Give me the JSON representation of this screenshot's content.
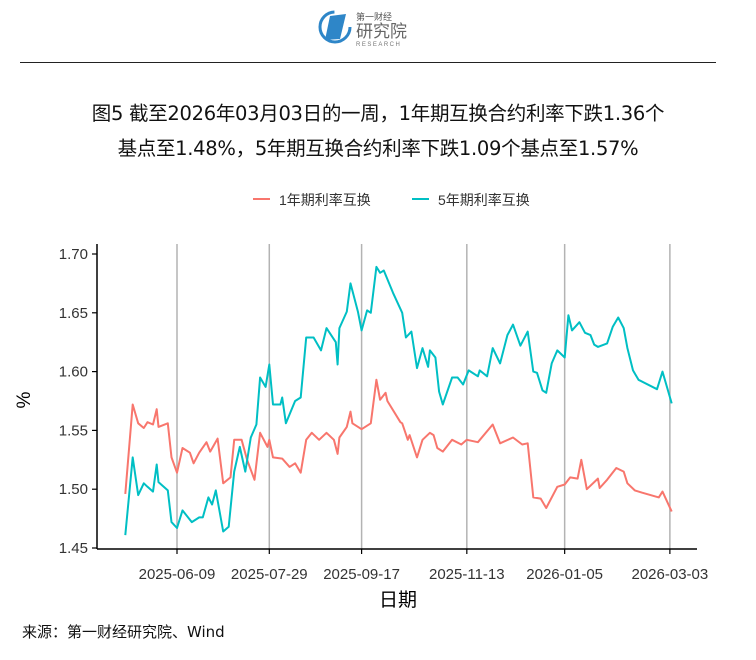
{
  "header": {
    "logo_text_top": "第一财经",
    "logo_text_main": "研究院",
    "logo_text_sub": "RESEARCH"
  },
  "title": {
    "line1": "图5  截至2026年03月03日的一周，1年期互换合约利率下跌1.36个",
    "line2": "基点至1.48%，5年期互换合约利率下跌1.09个基点至1.57%"
  },
  "source": "来源：第一财经研究院、Wind",
  "chart_data": {
    "type": "line",
    "title": "",
    "xlabel": "日期",
    "ylabel": "%",
    "x_unit": "days since 2025-06-09",
    "xlim": [
      -29,
      274
    ],
    "ylim": [
      1.45,
      1.7
    ],
    "yticks": [
      1.45,
      1.5,
      1.55,
      1.6,
      1.65,
      1.7
    ],
    "ytick_labels": [
      "1.45",
      "1.50",
      "1.55",
      "1.60",
      "1.65",
      "1.70"
    ],
    "xticks": [
      0,
      50,
      100,
      157,
      210,
      267
    ],
    "xtick_labels": [
      "2025-06-09",
      "2025-07-29",
      "2025-09-17",
      "2025-11-13",
      "2026-01-05",
      "2026-03-03"
    ],
    "grid": "vertical major",
    "legend": "top",
    "series": [
      {
        "name": "1年期利率互换",
        "color": "#F8766D",
        "points": [
          [
            -28,
            1.496
          ],
          [
            -24,
            1.572
          ],
          [
            -21,
            1.556
          ],
          [
            -18,
            1.552
          ],
          [
            -16,
            1.557
          ],
          [
            -13,
            1.555
          ],
          [
            -11,
            1.568
          ],
          [
            -10,
            1.553
          ],
          [
            -5,
            1.556
          ],
          [
            -3,
            1.527
          ],
          [
            0,
            1.514
          ],
          [
            3,
            1.535
          ],
          [
            7,
            1.531
          ],
          [
            9,
            1.522
          ],
          [
            12,
            1.531
          ],
          [
            16,
            1.54
          ],
          [
            18,
            1.532
          ],
          [
            22,
            1.543
          ],
          [
            25,
            1.505
          ],
          [
            29,
            1.51
          ],
          [
            31,
            1.542
          ],
          [
            35,
            1.542
          ],
          [
            38,
            1.525
          ],
          [
            42,
            1.508
          ],
          [
            45,
            1.548
          ],
          [
            49,
            1.536
          ],
          [
            50,
            1.542
          ],
          [
            52,
            1.527
          ],
          [
            57,
            1.526
          ],
          [
            61,
            1.519
          ],
          [
            64,
            1.522
          ],
          [
            67,
            1.514
          ],
          [
            70,
            1.542
          ],
          [
            73,
            1.548
          ],
          [
            77,
            1.542
          ],
          [
            81,
            1.548
          ],
          [
            85,
            1.542
          ],
          [
            87,
            1.53
          ],
          [
            88,
            1.544
          ],
          [
            92,
            1.553
          ],
          [
            94,
            1.566
          ],
          [
            95,
            1.556
          ],
          [
            100,
            1.551
          ],
          [
            105,
            1.556
          ],
          [
            108,
            1.593
          ],
          [
            110,
            1.576
          ],
          [
            113,
            1.582
          ],
          [
            114,
            1.575
          ],
          [
            121,
            1.557
          ],
          [
            122,
            1.556
          ],
          [
            125,
            1.542
          ],
          [
            126,
            1.546
          ],
          [
            130,
            1.527
          ],
          [
            133,
            1.542
          ],
          [
            137,
            1.548
          ],
          [
            139,
            1.546
          ],
          [
            141,
            1.535
          ],
          [
            144,
            1.532
          ],
          [
            149,
            1.542
          ],
          [
            154,
            1.538
          ],
          [
            157,
            1.542
          ],
          [
            163,
            1.54
          ],
          [
            171,
            1.555
          ],
          [
            175,
            1.539
          ],
          [
            182,
            1.544
          ],
          [
            187,
            1.538
          ],
          [
            190,
            1.539
          ],
          [
            193,
            1.493
          ],
          [
            197,
            1.492
          ],
          [
            200,
            1.484
          ],
          [
            206,
            1.502
          ],
          [
            210,
            1.504
          ],
          [
            213,
            1.51
          ],
          [
            217,
            1.509
          ],
          [
            219,
            1.525
          ],
          [
            222,
            1.5
          ],
          [
            228,
            1.509
          ],
          [
            229,
            1.501
          ],
          [
            233,
            1.508
          ],
          [
            238,
            1.518
          ],
          [
            242,
            1.515
          ],
          [
            244,
            1.505
          ],
          [
            248,
            1.499
          ],
          [
            252,
            1.497
          ],
          [
            261,
            1.493
          ],
          [
            263,
            1.498
          ],
          [
            268,
            1.481
          ]
        ]
      },
      {
        "name": "5年期利率互换",
        "color": "#00BFC4",
        "points": [
          [
            -28,
            1.461
          ],
          [
            -24,
            1.527
          ],
          [
            -21,
            1.495
          ],
          [
            -18,
            1.505
          ],
          [
            -16,
            1.502
          ],
          [
            -13,
            1.498
          ],
          [
            -11,
            1.521
          ],
          [
            -10,
            1.506
          ],
          [
            -5,
            1.499
          ],
          [
            -3,
            1.472
          ],
          [
            0,
            1.467
          ],
          [
            3,
            1.482
          ],
          [
            8,
            1.472
          ],
          [
            12,
            1.476
          ],
          [
            14,
            1.476
          ],
          [
            17,
            1.493
          ],
          [
            19,
            1.487
          ],
          [
            21,
            1.499
          ],
          [
            25,
            1.464
          ],
          [
            28,
            1.468
          ],
          [
            31,
            1.515
          ],
          [
            34,
            1.536
          ],
          [
            37,
            1.515
          ],
          [
            40,
            1.544
          ],
          [
            43,
            1.555
          ],
          [
            45,
            1.595
          ],
          [
            48,
            1.587
          ],
          [
            50,
            1.606
          ],
          [
            52,
            1.572
          ],
          [
            56,
            1.572
          ],
          [
            57,
            1.578
          ],
          [
            59,
            1.556
          ],
          [
            64,
            1.575
          ],
          [
            67,
            1.578
          ],
          [
            70,
            1.629
          ],
          [
            74,
            1.629
          ],
          [
            78,
            1.618
          ],
          [
            81,
            1.637
          ],
          [
            86,
            1.625
          ],
          [
            87,
            1.606
          ],
          [
            88,
            1.637
          ],
          [
            92,
            1.651
          ],
          [
            94,
            1.675
          ],
          [
            98,
            1.651
          ],
          [
            100,
            1.635
          ],
          [
            103,
            1.652
          ],
          [
            105,
            1.65
          ],
          [
            108,
            1.689
          ],
          [
            110,
            1.684
          ],
          [
            112,
            1.686
          ],
          [
            117,
            1.667
          ],
          [
            122,
            1.65
          ],
          [
            124,
            1.629
          ],
          [
            127,
            1.634
          ],
          [
            130,
            1.603
          ],
          [
            133,
            1.62
          ],
          [
            136,
            1.604
          ],
          [
            137,
            1.618
          ],
          [
            140,
            1.612
          ],
          [
            142,
            1.583
          ],
          [
            144,
            1.572
          ],
          [
            149,
            1.595
          ],
          [
            152,
            1.595
          ],
          [
            155,
            1.589
          ],
          [
            158,
            1.601
          ],
          [
            163,
            1.596
          ],
          [
            164,
            1.601
          ],
          [
            168,
            1.596
          ],
          [
            171,
            1.62
          ],
          [
            175,
            1.607
          ],
          [
            179,
            1.631
          ],
          [
            182,
            1.64
          ],
          [
            186,
            1.622
          ],
          [
            190,
            1.634
          ],
          [
            193,
            1.6
          ],
          [
            195,
            1.599
          ],
          [
            198,
            1.584
          ],
          [
            200,
            1.582
          ],
          [
            203,
            1.607
          ],
          [
            206,
            1.618
          ],
          [
            210,
            1.612
          ],
          [
            212,
            1.648
          ],
          [
            214,
            1.635
          ],
          [
            218,
            1.642
          ],
          [
            221,
            1.633
          ],
          [
            224,
            1.631
          ],
          [
            226,
            1.623
          ],
          [
            228,
            1.621
          ],
          [
            233,
            1.624
          ],
          [
            236,
            1.638
          ],
          [
            239,
            1.646
          ],
          [
            242,
            1.637
          ],
          [
            244,
            1.62
          ],
          [
            247,
            1.601
          ],
          [
            250,
            1.593
          ],
          [
            260,
            1.585
          ],
          [
            263,
            1.6
          ],
          [
            268,
            1.573
          ]
        ]
      }
    ]
  }
}
